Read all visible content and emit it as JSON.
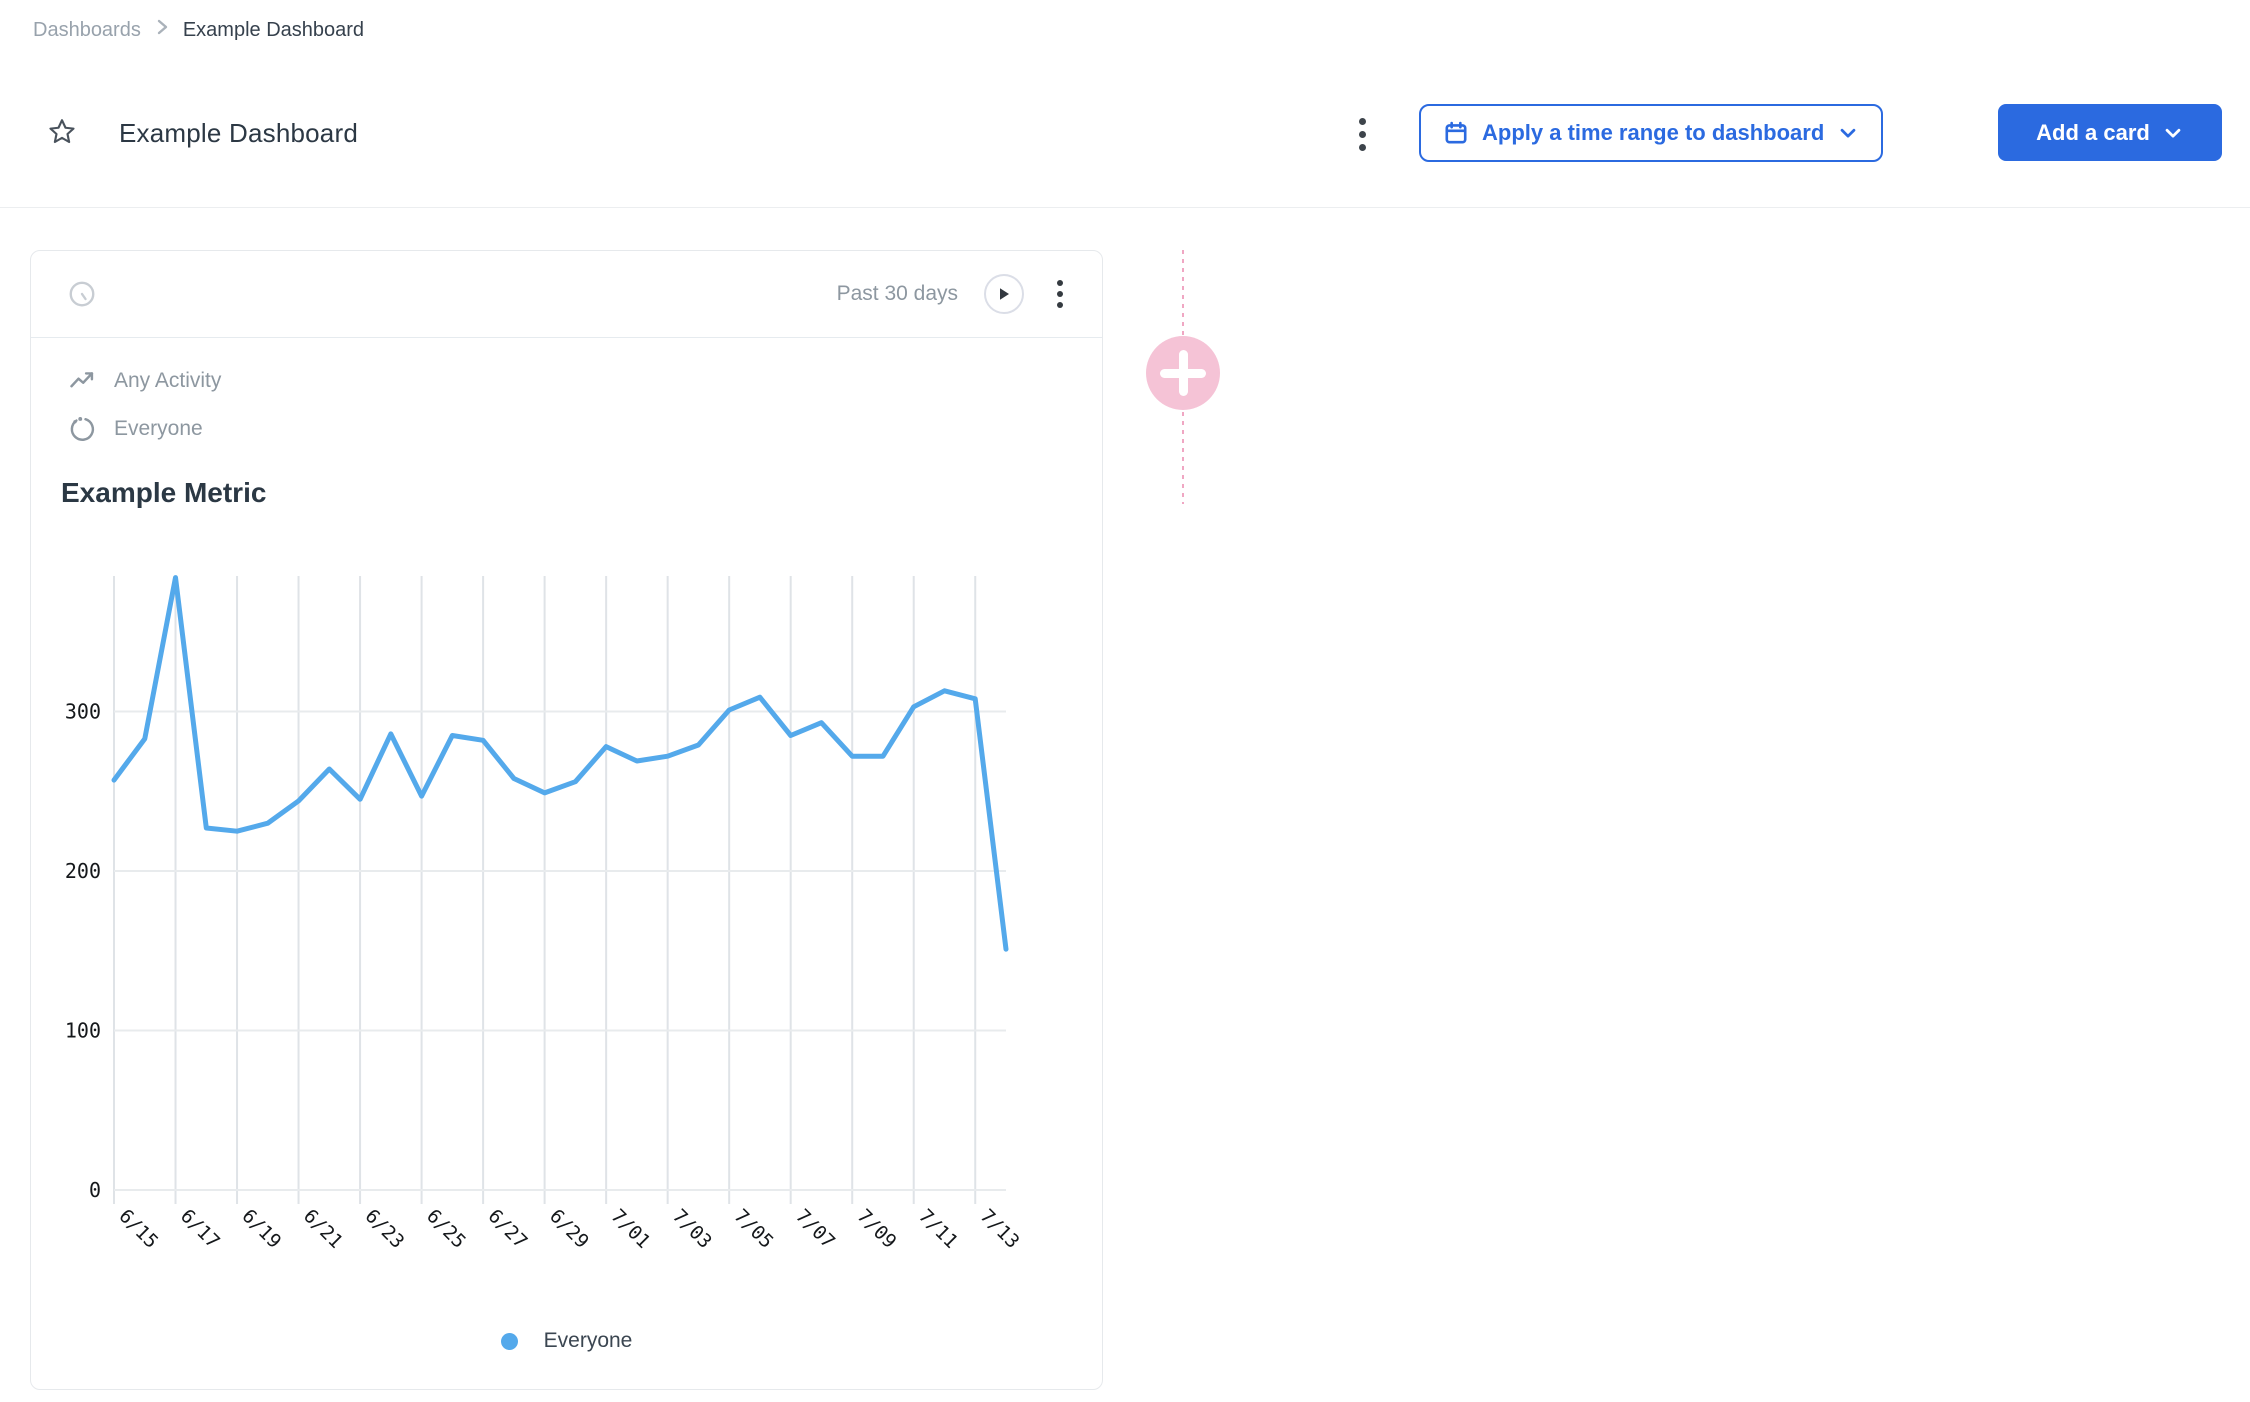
{
  "breadcrumb": {
    "parent": "Dashboards",
    "current": "Example Dashboard"
  },
  "header": {
    "title": "Example Dashboard",
    "apply_time_range_label": "Apply a time range to dashboard",
    "add_card_label": "Add a card"
  },
  "card": {
    "time_range": "Past 30 days",
    "event_label": "Any Activity",
    "segment_label": "Everyone",
    "metric_title": "Example Metric",
    "legend": {
      "label": "Everyone",
      "color": "#54a9eb"
    }
  },
  "colors": {
    "accent_blue": "#2b6ae0",
    "line_blue": "#54a9eb",
    "grid_vertical": "#dfe3e7",
    "grid_horizontal": "#e8ebed",
    "tick_text": "#15181b",
    "pink_circle": "#f5c3d6",
    "pink_dash": "#f0a7c3"
  },
  "chart_data": {
    "type": "line",
    "title": "Example Metric",
    "x": [
      "6/15",
      "6/16",
      "6/17",
      "6/18",
      "6/19",
      "6/20",
      "6/21",
      "6/22",
      "6/23",
      "6/24",
      "6/25",
      "6/26",
      "6/27",
      "6/28",
      "6/29",
      "6/30",
      "7/01",
      "7/02",
      "7/03",
      "7/04",
      "7/05",
      "7/06",
      "7/07",
      "7/08",
      "7/09",
      "7/10",
      "7/11",
      "7/12",
      "7/13",
      "7/14"
    ],
    "series": [
      {
        "name": "Everyone",
        "color": "#54a9eb",
        "values": [
          257,
          283,
          384,
          227,
          225,
          230,
          244,
          264,
          245,
          286,
          247,
          285,
          282,
          258,
          249,
          256,
          278,
          269,
          272,
          279,
          301,
          309,
          285,
          293,
          272,
          272,
          303,
          313,
          308,
          151
        ]
      }
    ],
    "x_tick_labels": [
      "6/15",
      "6/17",
      "6/19",
      "6/21",
      "6/23",
      "6/25",
      "6/27",
      "6/29",
      "7/01",
      "7/03",
      "7/05",
      "7/07",
      "7/09",
      "7/11",
      "7/13"
    ],
    "y_ticks": [
      0,
      100,
      200,
      300
    ],
    "ylim": [
      0,
      385
    ],
    "grid": true,
    "legend_position": "bottom"
  }
}
